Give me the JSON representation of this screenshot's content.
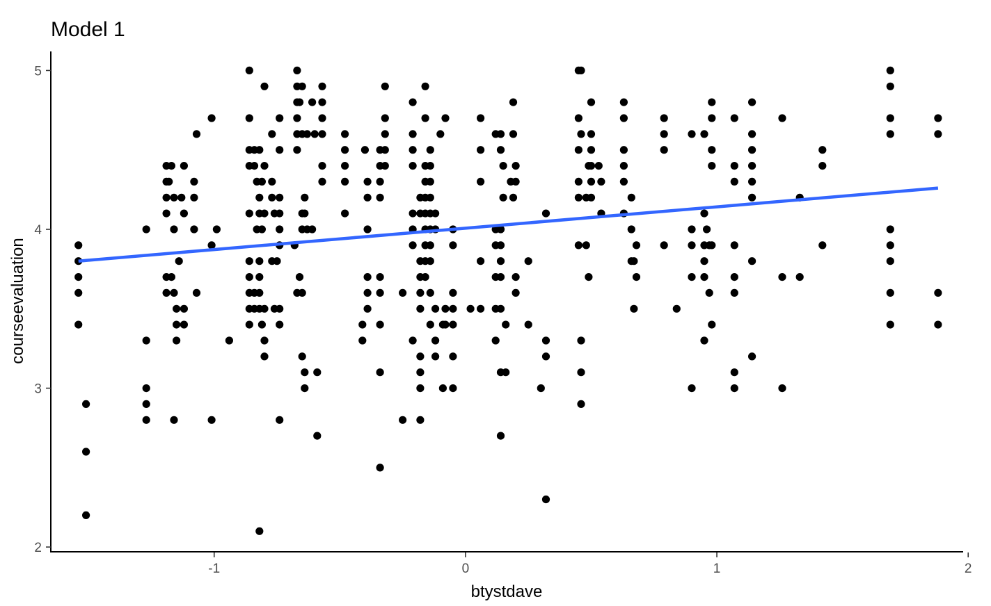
{
  "chart_data": {
    "type": "scatter",
    "title": "Model 1",
    "xlabel": "btystdave",
    "ylabel": "courseevaluation",
    "xlim": [
      -1.65,
      1.98
    ],
    "ylim": [
      1.97,
      5.12
    ],
    "x_ticks": [
      -1,
      0,
      1,
      2
    ],
    "y_ticks": [
      2,
      3,
      4,
      5
    ],
    "x_tick_labels": [
      "-1",
      "0",
      "1",
      "2"
    ],
    "y_tick_labels": [
      "2",
      "3",
      "4",
      "5"
    ],
    "grid": false,
    "legend": "none",
    "point_color": "#000000",
    "trend_line": {
      "method": "lm",
      "color": "#3366ff",
      "x": [
        -1.54,
        1.88
      ],
      "y": [
        3.8,
        4.26
      ]
    },
    "points": [
      [
        -1.54,
        3.9
      ],
      [
        -1.54,
        3.8
      ],
      [
        -1.54,
        3.7
      ],
      [
        -1.54,
        3.6
      ],
      [
        -1.54,
        3.4
      ],
      [
        -1.51,
        2.9
      ],
      [
        -1.51,
        2.6
      ],
      [
        -1.51,
        2.2
      ],
      [
        -1.27,
        4.0
      ],
      [
        -1.27,
        3.3
      ],
      [
        -1.27,
        3.0
      ],
      [
        -1.27,
        2.9
      ],
      [
        -1.27,
        2.8
      ],
      [
        -1.19,
        4.4
      ],
      [
        -1.17,
        4.4
      ],
      [
        -1.19,
        4.3
      ],
      [
        -1.18,
        4.3
      ],
      [
        -1.19,
        4.2
      ],
      [
        -1.16,
        4.2
      ],
      [
        -1.19,
        4.1
      ],
      [
        -1.16,
        4.0
      ],
      [
        -1.19,
        3.7
      ],
      [
        -1.17,
        3.7
      ],
      [
        -1.19,
        3.6
      ],
      [
        -1.16,
        3.6
      ],
      [
        -1.14,
        3.8
      ],
      [
        -1.15,
        3.5
      ],
      [
        -1.12,
        3.5
      ],
      [
        -1.15,
        3.4
      ],
      [
        -1.12,
        3.4
      ],
      [
        -1.15,
        3.3
      ],
      [
        -1.16,
        2.8
      ],
      [
        -1.12,
        4.4
      ],
      [
        -1.13,
        4.2
      ],
      [
        -1.12,
        4.1
      ],
      [
        -1.07,
        4.6
      ],
      [
        -1.08,
        4.3
      ],
      [
        -1.08,
        4.2
      ],
      [
        -1.08,
        4.0
      ],
      [
        -1.07,
        3.6
      ],
      [
        -1.01,
        4.7
      ],
      [
        -1.01,
        3.9
      ],
      [
        -1.01,
        2.8
      ],
      [
        -0.99,
        4.0
      ],
      [
        -0.94,
        3.3
      ],
      [
        -0.86,
        5.0
      ],
      [
        -0.86,
        4.7
      ],
      [
        -0.86,
        4.5
      ],
      [
        -0.84,
        4.5
      ],
      [
        -0.86,
        4.4
      ],
      [
        -0.84,
        4.4
      ],
      [
        -0.86,
        4.1
      ],
      [
        -0.86,
        3.8
      ],
      [
        -0.86,
        3.7
      ],
      [
        -0.86,
        3.6
      ],
      [
        -0.84,
        3.6
      ],
      [
        -0.86,
        3.5
      ],
      [
        -0.84,
        3.5
      ],
      [
        -0.86,
        3.4
      ],
      [
        -0.82,
        4.5
      ],
      [
        -0.81,
        4.3
      ],
      [
        -0.83,
        4.3
      ],
      [
        -0.82,
        4.2
      ],
      [
        -0.82,
        4.1
      ],
      [
        -0.81,
        4.0
      ],
      [
        -0.83,
        4.0
      ],
      [
        -0.82,
        3.8
      ],
      [
        -0.82,
        3.7
      ],
      [
        -0.82,
        3.6
      ],
      [
        -0.82,
        3.5
      ],
      [
        -0.81,
        3.4
      ],
      [
        -0.82,
        2.1
      ],
      [
        -0.8,
        4.9
      ],
      [
        -0.8,
        4.4
      ],
      [
        -0.8,
        4.1
      ],
      [
        -0.8,
        3.5
      ],
      [
        -0.8,
        3.3
      ],
      [
        -0.8,
        3.2
      ],
      [
        -0.77,
        4.6
      ],
      [
        -0.77,
        4.3
      ],
      [
        -0.77,
        4.2
      ],
      [
        -0.76,
        4.1
      ],
      [
        -0.77,
        3.8
      ],
      [
        -0.75,
        3.8
      ],
      [
        -0.76,
        3.5
      ],
      [
        -0.74,
        4.7
      ],
      [
        -0.74,
        4.5
      ],
      [
        -0.74,
        4.2
      ],
      [
        -0.74,
        4.1
      ],
      [
        -0.74,
        4.0
      ],
      [
        -0.74,
        3.9
      ],
      [
        -0.74,
        3.5
      ],
      [
        -0.74,
        3.4
      ],
      [
        -0.74,
        2.8
      ],
      [
        -0.67,
        5.0
      ],
      [
        -0.67,
        4.9
      ],
      [
        -0.67,
        4.8
      ],
      [
        -0.66,
        4.8
      ],
      [
        -0.67,
        4.7
      ],
      [
        -0.67,
        4.6
      ],
      [
        -0.65,
        4.6
      ],
      [
        -0.67,
        4.5
      ],
      [
        -0.68,
        3.9
      ],
      [
        -0.67,
        3.6
      ],
      [
        -0.65,
        3.6
      ],
      [
        -0.66,
        3.7
      ],
      [
        -0.65,
        4.9
      ],
      [
        -0.64,
        4.2
      ],
      [
        -0.65,
        4.1
      ],
      [
        -0.64,
        4.1
      ],
      [
        -0.65,
        4.0
      ],
      [
        -0.63,
        4.0
      ],
      [
        -0.65,
        3.2
      ],
      [
        -0.64,
        3.1
      ],
      [
        -0.64,
        3.0
      ],
      [
        -0.63,
        4.6
      ],
      [
        -0.61,
        4.8
      ],
      [
        -0.6,
        4.6
      ],
      [
        -0.61,
        4.0
      ],
      [
        -0.59,
        3.1
      ],
      [
        -0.59,
        2.7
      ],
      [
        -0.57,
        4.9
      ],
      [
        -0.57,
        4.8
      ],
      [
        -0.57,
        4.7
      ],
      [
        -0.57,
        4.6
      ],
      [
        -0.57,
        4.4
      ],
      [
        -0.57,
        4.3
      ],
      [
        -0.48,
        4.6
      ],
      [
        -0.48,
        4.5
      ],
      [
        -0.48,
        4.4
      ],
      [
        -0.48,
        4.3
      ],
      [
        -0.48,
        4.1
      ],
      [
        -0.4,
        4.5
      ],
      [
        -0.39,
        4.3
      ],
      [
        -0.39,
        4.2
      ],
      [
        -0.39,
        4.0
      ],
      [
        -0.41,
        3.4
      ],
      [
        -0.41,
        3.3
      ],
      [
        -0.39,
        3.7
      ],
      [
        -0.39,
        3.6
      ],
      [
        -0.39,
        3.5
      ],
      [
        -0.34,
        4.5
      ],
      [
        -0.34,
        4.4
      ],
      [
        -0.34,
        4.3
      ],
      [
        -0.34,
        4.2
      ],
      [
        -0.34,
        3.7
      ],
      [
        -0.34,
        3.6
      ],
      [
        -0.34,
        3.4
      ],
      [
        -0.34,
        3.1
      ],
      [
        -0.34,
        2.5
      ],
      [
        -0.32,
        4.9
      ],
      [
        -0.32,
        4.7
      ],
      [
        -0.32,
        4.6
      ],
      [
        -0.32,
        4.5
      ],
      [
        -0.32,
        4.4
      ],
      [
        -0.25,
        3.6
      ],
      [
        -0.25,
        2.8
      ],
      [
        -0.21,
        4.8
      ],
      [
        -0.21,
        4.6
      ],
      [
        -0.21,
        4.5
      ],
      [
        -0.21,
        4.4
      ],
      [
        -0.21,
        4.1
      ],
      [
        -0.21,
        4.0
      ],
      [
        -0.21,
        3.9
      ],
      [
        -0.21,
        3.3
      ],
      [
        -0.18,
        4.2
      ],
      [
        -0.18,
        4.1
      ],
      [
        -0.18,
        3.8
      ],
      [
        -0.18,
        3.7
      ],
      [
        -0.18,
        3.6
      ],
      [
        -0.18,
        3.5
      ],
      [
        -0.18,
        3.2
      ],
      [
        -0.18,
        3.1
      ],
      [
        -0.18,
        3.0
      ],
      [
        -0.18,
        2.8
      ],
      [
        -0.16,
        4.9
      ],
      [
        -0.16,
        4.7
      ],
      [
        -0.16,
        4.4
      ],
      [
        -0.16,
        4.3
      ],
      [
        -0.16,
        4.2
      ],
      [
        -0.16,
        4.1
      ],
      [
        -0.16,
        4.0
      ],
      [
        -0.16,
        3.9
      ],
      [
        -0.16,
        3.8
      ],
      [
        -0.16,
        3.7
      ],
      [
        -0.14,
        4.5
      ],
      [
        -0.14,
        4.4
      ],
      [
        -0.14,
        4.3
      ],
      [
        -0.14,
        4.2
      ],
      [
        -0.14,
        4.1
      ],
      [
        -0.14,
        4.0
      ],
      [
        -0.14,
        3.9
      ],
      [
        -0.14,
        3.8
      ],
      [
        -0.14,
        3.6
      ],
      [
        -0.14,
        3.4
      ],
      [
        -0.12,
        4.1
      ],
      [
        -0.12,
        4.0
      ],
      [
        -0.12,
        3.5
      ],
      [
        -0.12,
        3.3
      ],
      [
        -0.12,
        3.2
      ],
      [
        -0.1,
        4.6
      ],
      [
        -0.09,
        3.4
      ],
      [
        -0.09,
        3.0
      ],
      [
        -0.08,
        4.7
      ],
      [
        -0.08,
        3.5
      ],
      [
        -0.08,
        3.4
      ],
      [
        -0.05,
        4.0
      ],
      [
        -0.05,
        3.9
      ],
      [
        -0.05,
        3.6
      ],
      [
        -0.05,
        3.5
      ],
      [
        -0.05,
        3.4
      ],
      [
        -0.05,
        3.2
      ],
      [
        -0.05,
        3.0
      ],
      [
        0.02,
        3.5
      ],
      [
        0.06,
        4.7
      ],
      [
        0.06,
        4.5
      ],
      [
        0.06,
        4.3
      ],
      [
        0.06,
        3.8
      ],
      [
        0.06,
        3.5
      ],
      [
        0.12,
        4.6
      ],
      [
        0.12,
        4.0
      ],
      [
        0.12,
        3.9
      ],
      [
        0.12,
        3.7
      ],
      [
        0.12,
        3.5
      ],
      [
        0.12,
        3.3
      ],
      [
        0.14,
        4.6
      ],
      [
        0.14,
        4.5
      ],
      [
        0.14,
        4.0
      ],
      [
        0.14,
        3.9
      ],
      [
        0.14,
        3.8
      ],
      [
        0.14,
        3.7
      ],
      [
        0.14,
        3.5
      ],
      [
        0.14,
        3.1
      ],
      [
        0.14,
        2.7
      ],
      [
        0.15,
        4.4
      ],
      [
        0.15,
        4.2
      ],
      [
        0.16,
        3.4
      ],
      [
        0.16,
        3.1
      ],
      [
        0.18,
        4.3
      ],
      [
        0.19,
        4.8
      ],
      [
        0.19,
        4.6
      ],
      [
        0.19,
        4.2
      ],
      [
        0.2,
        4.4
      ],
      [
        0.2,
        4.3
      ],
      [
        0.2,
        3.7
      ],
      [
        0.2,
        3.6
      ],
      [
        0.25,
        3.8
      ],
      [
        0.25,
        3.4
      ],
      [
        0.3,
        3.0
      ],
      [
        0.32,
        4.1
      ],
      [
        0.32,
        3.3
      ],
      [
        0.32,
        3.2
      ],
      [
        0.32,
        2.3
      ],
      [
        0.45,
        5.0
      ],
      [
        0.45,
        4.7
      ],
      [
        0.45,
        4.5
      ],
      [
        0.45,
        4.3
      ],
      [
        0.45,
        4.2
      ],
      [
        0.45,
        3.9
      ],
      [
        0.46,
        5.0
      ],
      [
        0.46,
        4.6
      ],
      [
        0.46,
        3.3
      ],
      [
        0.46,
        3.1
      ],
      [
        0.46,
        2.9
      ],
      [
        0.48,
        4.2
      ],
      [
        0.49,
        4.4
      ],
      [
        0.48,
        3.9
      ],
      [
        0.49,
        3.7
      ],
      [
        0.5,
        4.8
      ],
      [
        0.5,
        4.6
      ],
      [
        0.5,
        4.5
      ],
      [
        0.5,
        4.4
      ],
      [
        0.5,
        4.3
      ],
      [
        0.5,
        4.2
      ],
      [
        0.53,
        4.4
      ],
      [
        0.54,
        4.3
      ],
      [
        0.54,
        4.1
      ],
      [
        0.63,
        4.8
      ],
      [
        0.63,
        4.7
      ],
      [
        0.63,
        4.5
      ],
      [
        0.63,
        4.4
      ],
      [
        0.63,
        4.3
      ],
      [
        0.63,
        4.1
      ],
      [
        0.66,
        4.2
      ],
      [
        0.66,
        4.0
      ],
      [
        0.66,
        3.8
      ],
      [
        0.67,
        3.8
      ],
      [
        0.67,
        3.5
      ],
      [
        0.68,
        3.9
      ],
      [
        0.68,
        3.7
      ],
      [
        0.79,
        4.7
      ],
      [
        0.79,
        4.6
      ],
      [
        0.79,
        4.5
      ],
      [
        0.79,
        3.9
      ],
      [
        0.84,
        3.5
      ],
      [
        0.9,
        4.6
      ],
      [
        0.9,
        4.0
      ],
      [
        0.9,
        3.9
      ],
      [
        0.9,
        3.7
      ],
      [
        0.9,
        3.0
      ],
      [
        0.95,
        4.6
      ],
      [
        0.95,
        4.1
      ],
      [
        0.95,
        3.9
      ],
      [
        0.95,
        3.8
      ],
      [
        0.95,
        3.7
      ],
      [
        0.95,
        3.3
      ],
      [
        0.96,
        4.0
      ],
      [
        0.97,
        3.9
      ],
      [
        0.97,
        3.6
      ],
      [
        0.98,
        4.8
      ],
      [
        0.98,
        4.7
      ],
      [
        0.98,
        4.5
      ],
      [
        0.98,
        4.4
      ],
      [
        0.98,
        3.9
      ],
      [
        0.98,
        3.4
      ],
      [
        1.07,
        4.7
      ],
      [
        1.07,
        4.4
      ],
      [
        1.07,
        4.3
      ],
      [
        1.07,
        3.9
      ],
      [
        1.07,
        3.7
      ],
      [
        1.07,
        3.6
      ],
      [
        1.07,
        3.1
      ],
      [
        1.07,
        3.0
      ],
      [
        1.14,
        4.8
      ],
      [
        1.14,
        4.6
      ],
      [
        1.14,
        4.5
      ],
      [
        1.14,
        4.4
      ],
      [
        1.14,
        4.3
      ],
      [
        1.14,
        4.2
      ],
      [
        1.14,
        3.8
      ],
      [
        1.14,
        3.2
      ],
      [
        1.26,
        4.7
      ],
      [
        1.26,
        3.7
      ],
      [
        1.26,
        3.0
      ],
      [
        1.33,
        4.2
      ],
      [
        1.33,
        3.7
      ],
      [
        1.42,
        4.5
      ],
      [
        1.42,
        4.4
      ],
      [
        1.42,
        3.9
      ],
      [
        1.69,
        5.0
      ],
      [
        1.69,
        4.9
      ],
      [
        1.69,
        4.7
      ],
      [
        1.69,
        4.6
      ],
      [
        1.69,
        4.0
      ],
      [
        1.69,
        3.9
      ],
      [
        1.69,
        3.8
      ],
      [
        1.69,
        3.6
      ],
      [
        1.69,
        3.4
      ],
      [
        1.88,
        4.7
      ],
      [
        1.88,
        4.6
      ],
      [
        1.88,
        3.6
      ],
      [
        1.88,
        3.4
      ]
    ]
  }
}
